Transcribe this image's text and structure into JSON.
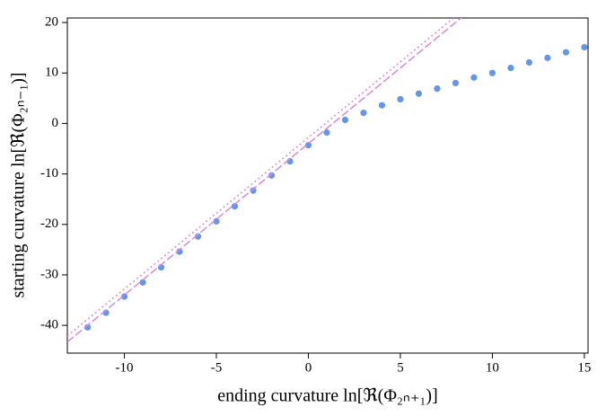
{
  "chart_data": {
    "type": "scatter",
    "xlabel": "ending curvature ln[ℜ(Φ₂ₙ₊₁)]",
    "ylabel": "starting curvature ln[ℜ(Φ₂ₙ₋₁)]",
    "xlim": [
      -13.1,
      15.2
    ],
    "ylim": [
      -45.5,
      20.9
    ],
    "xticks": [
      -10,
      -5,
      0,
      5,
      10,
      15
    ],
    "yticks": [
      -40,
      -30,
      -20,
      -10,
      0,
      10,
      20
    ],
    "series": [
      {
        "mode": "markers",
        "color": "#6495ed",
        "x": [
          -12,
          -11,
          -10,
          -9,
          -8,
          -7,
          -6,
          -5,
          -4,
          -3,
          -2,
          -1,
          0,
          1,
          2,
          3,
          4,
          5,
          6,
          7,
          8,
          9,
          10,
          11,
          12,
          13,
          14,
          15
        ],
        "values": [
          -40.4,
          -37.5,
          -34.3,
          -31.5,
          -28.5,
          -25.4,
          -22.4,
          -19.4,
          -16.4,
          -13.3,
          -10.3,
          -7.5,
          -4.3,
          -1.8,
          0.7,
          2.1,
          3.6,
          4.8,
          5.9,
          6.9,
          8.0,
          9.1,
          10.0,
          11.0,
          12.1,
          13.0,
          14.1,
          15.1
        ]
      },
      {
        "mode": "dash",
        "color": "#d88ad8",
        "x": [
          -13.1,
          8.33
        ],
        "values": [
          -43.3,
          21
        ]
      },
      {
        "mode": "dot",
        "color": "#d88ad8",
        "x": [
          -13.1,
          7.93
        ],
        "values": [
          -42.1,
          21
        ]
      }
    ]
  }
}
